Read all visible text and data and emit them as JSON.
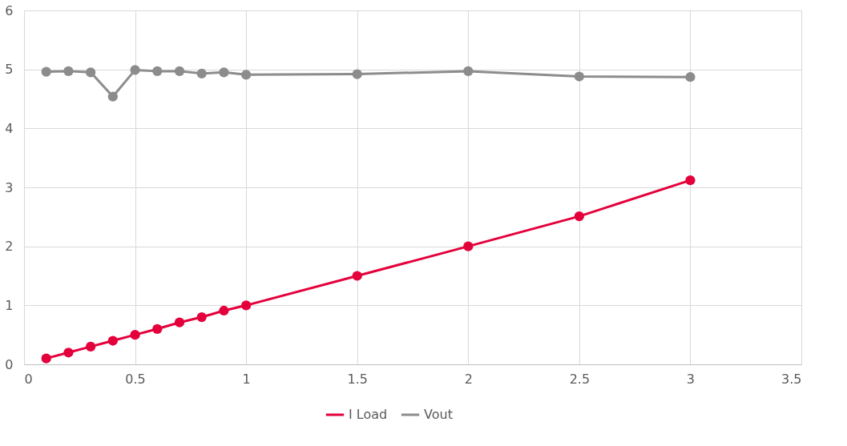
{
  "chart_data": {
    "type": "line",
    "x": [
      0.1,
      0.2,
      0.3,
      0.4,
      0.5,
      0.6,
      0.7,
      0.8,
      0.9,
      1,
      1.5,
      2,
      2.5,
      3
    ],
    "series": [
      {
        "name": "I Load",
        "color": "#e4003b",
        "values": [
          0.1,
          0.2,
          0.3,
          0.4,
          0.5,
          0.6,
          0.71,
          0.8,
          0.91,
          1.0,
          1.5,
          2.0,
          2.51,
          3.12
        ]
      },
      {
        "name": "Vout",
        "color": "#8c8c8c",
        "values": [
          4.96,
          4.97,
          4.95,
          4.54,
          4.99,
          4.97,
          4.97,
          4.93,
          4.95,
          4.91,
          4.92,
          4.97,
          4.88,
          4.87
        ]
      }
    ],
    "xlim": [
      0,
      3.5
    ],
    "xticks": [
      0,
      0.5,
      1,
      1.5,
      2,
      2.5,
      3,
      3.5
    ],
    "ylim": [
      0,
      6
    ],
    "yticks": [
      0,
      1,
      2,
      3,
      4,
      5,
      6
    ],
    "grid": true,
    "legend": "bottom",
    "marker": "circle",
    "line_style": "solid"
  }
}
